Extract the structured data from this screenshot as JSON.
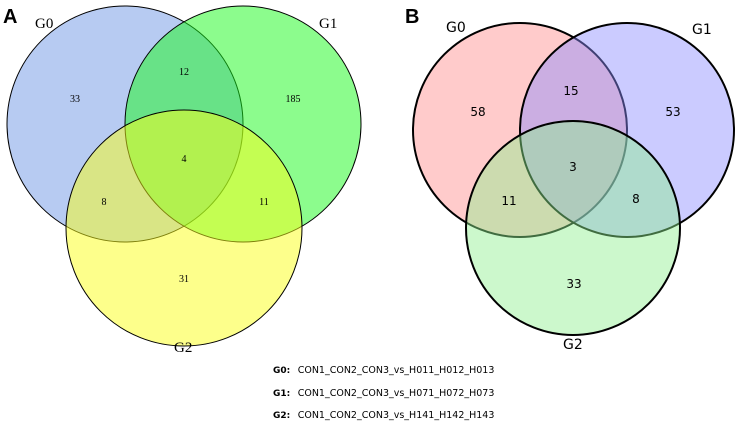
{
  "panels": [
    {
      "letter": "A",
      "sets": [
        {
          "name": "G0",
          "fill": "#6f98e6",
          "fill_opacity": 0.5
        },
        {
          "name": "G1",
          "fill": "#19fa1c",
          "fill_opacity": 0.5
        },
        {
          "name": "G2",
          "fill": "#fbff18",
          "fill_opacity": 0.5
        }
      ],
      "regions": {
        "G0_only": "33",
        "G1_only": "185",
        "G2_only": "31",
        "G0_G1": "12",
        "G0_G2": "8",
        "G1_G2": "11",
        "all": "4"
      }
    },
    {
      "letter": "B",
      "sets": [
        {
          "name": "G0",
          "fill": "#ff8c8c",
          "fill_opacity": 0.45
        },
        {
          "name": "G1",
          "fill": "#8c8cff",
          "fill_opacity": 0.45
        },
        {
          "name": "G2",
          "fill": "#8ff08f",
          "fill_opacity": 0.45
        }
      ],
      "regions": {
        "G0_only": "58",
        "G1_only": "53",
        "G2_only": "33",
        "G0_G1": "15",
        "G0_G2": "11",
        "G1_G2": "8",
        "all": "3"
      }
    }
  ],
  "legend": [
    {
      "key": "G0:",
      "text": "CON1_CON2_CON3_vs_H011_H012_H013"
    },
    {
      "key": "G1:",
      "text": "CON1_CON2_CON3_vs_H071_H072_H073"
    },
    {
      "key": "G2:",
      "text": "CON1_CON2_CON3_vs_H141_H142_H143"
    }
  ]
}
